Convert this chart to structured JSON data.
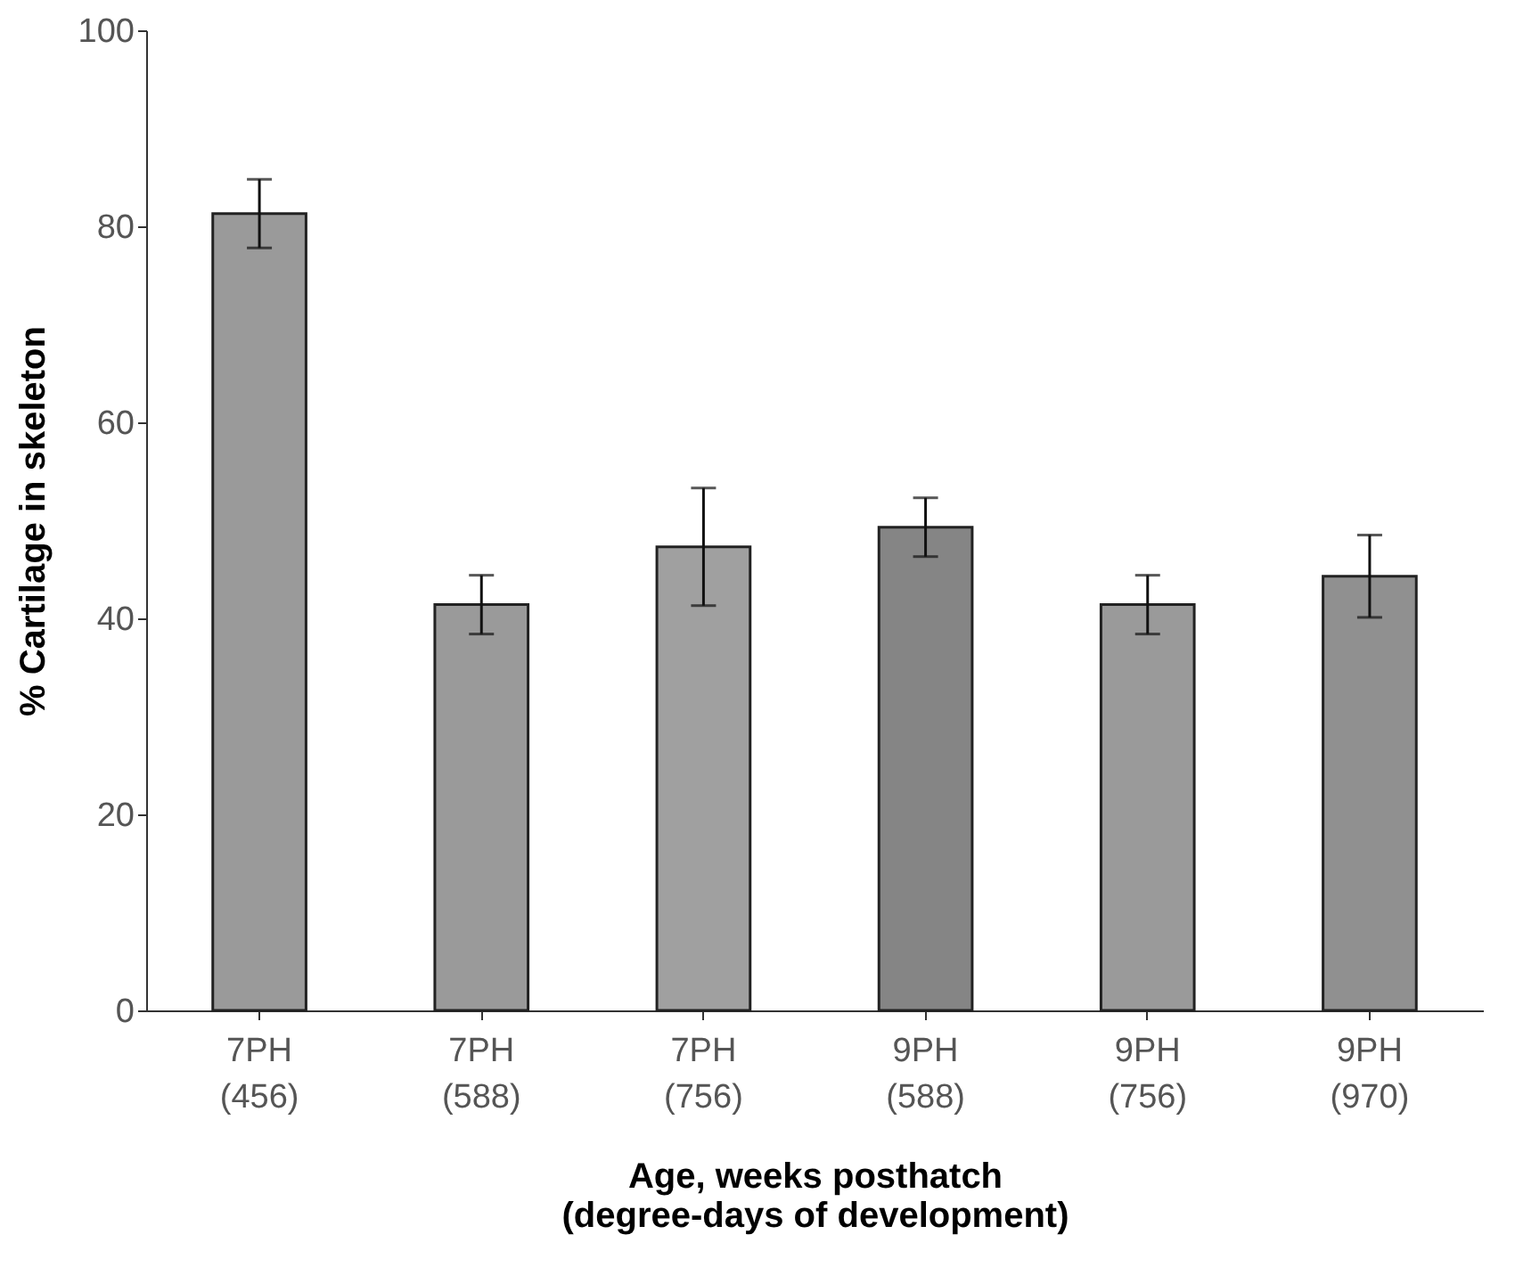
{
  "chart_data": {
    "type": "bar",
    "categories": [
      "7PH\n(456)",
      "7PH\n(588)",
      "7PH\n(756)",
      "9PH\n(588)",
      "9PH\n(756)",
      "9PH\n(970)"
    ],
    "values": [
      81.3,
      41.4,
      47.3,
      49.3,
      41.4,
      44.3
    ],
    "errors": [
      3.5,
      3,
      6,
      3,
      3,
      4.2
    ],
    "colors": [
      "#9a9a9a",
      "#9a9a9a",
      "#a0a0a0",
      "#858585",
      "#9a9a9a",
      "#909090"
    ],
    "xlabel": "Age, weeks posthatch\n(degree-days of development)",
    "ylabel": "% Cartilage in skeleton",
    "ylim": [
      0,
      100
    ],
    "yticks": [
      0,
      20,
      40,
      60,
      80,
      100
    ],
    "grid": false,
    "legend": false
  }
}
